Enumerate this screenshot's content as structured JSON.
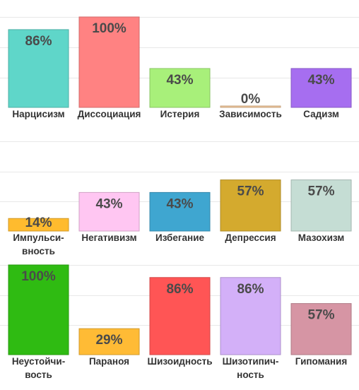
{
  "chart_data": [
    {
      "type": "bar",
      "ylim": [
        0,
        100
      ],
      "categories": [
        "Нарцисизм",
        "Диссоциация",
        "Истерия",
        "Зависимость",
        "Садизм"
      ],
      "values": [
        86,
        100,
        43,
        0,
        43
      ],
      "value_labels": [
        "86%",
        "100%",
        "43%",
        "0%",
        "43%"
      ],
      "colors": [
        "#5fd6c9",
        "#ff8282",
        "#a8f07a",
        "#f2c79b",
        "#a66ef0"
      ]
    },
    {
      "type": "bar",
      "ylim": [
        0,
        100
      ],
      "categories": [
        "Импульси-|вность",
        "Негативизм",
        "Избегание",
        "Депрессия",
        "Мазохизм"
      ],
      "values": [
        14,
        43,
        43,
        57,
        57
      ],
      "value_labels": [
        "14%",
        "43%",
        "43%",
        "57%",
        "57%"
      ],
      "colors": [
        "#ffbb2e",
        "#ffc6f2",
        "#3fa6d0",
        "#d4aa2e",
        "#c5ddd4"
      ]
    },
    {
      "type": "bar",
      "ylim": [
        0,
        100
      ],
      "categories": [
        "Неустойчи-|вость",
        "Параноя",
        "Шизоидность",
        "Шизотипич-|ность",
        "Гипомания"
      ],
      "values": [
        100,
        29,
        86,
        86,
        57
      ],
      "value_labels": [
        "100%",
        "29%",
        "86%",
        "86%",
        "57%"
      ],
      "colors": [
        "#2fbb12",
        "#ffbb35",
        "#ff5555",
        "#d3b0f8",
        "#d695a4"
      ]
    }
  ]
}
